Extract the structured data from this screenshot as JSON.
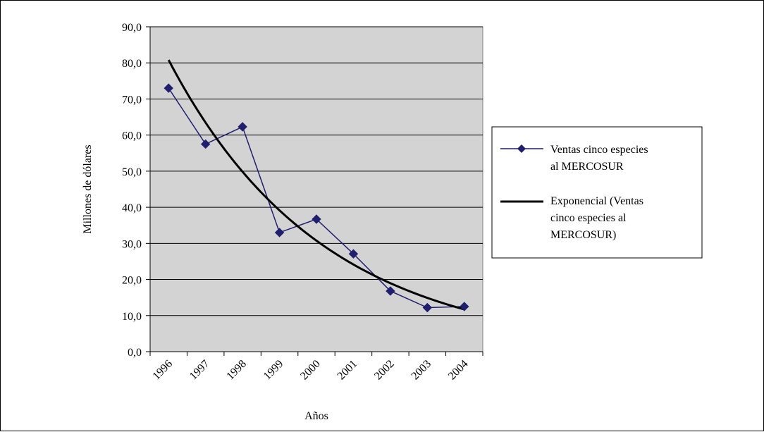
{
  "chart_data": {
    "type": "line",
    "title": "",
    "xlabel": "Años",
    "ylabel": "Millones de dólares",
    "categories": [
      "1996",
      "1997",
      "1998",
      "1999",
      "2000",
      "2001",
      "2002",
      "2003",
      "2004"
    ],
    "ylim": [
      0,
      90
    ],
    "yticks": [
      "0,0",
      "10,0",
      "20,0",
      "30,0",
      "40,0",
      "50,0",
      "60,0",
      "70,0",
      "80,0",
      "90,0"
    ],
    "grid": true,
    "legend_position": "right",
    "plot_background": "#d3d3d3",
    "series": [
      {
        "name": "Ventas cinco especies al MERCOSUR",
        "legend_lines": [
          "Ventas cinco especies",
          "al MERCOSUR"
        ],
        "values": [
          73.0,
          57.5,
          62.3,
          33.0,
          36.7,
          27.1,
          16.8,
          12.2,
          12.5
        ],
        "color": "#1f1f6e",
        "marker": "diamond"
      },
      {
        "name": "Exponencial (Ventas cinco especies al MERCOSUR)",
        "legend_lines": [
          "Exponencial (Ventas",
          "cinco especies al",
          "MERCOSUR)"
        ],
        "trendline": "exponential",
        "start_value": 80.8,
        "end_value": 11.7,
        "color": "#000000"
      }
    ]
  }
}
